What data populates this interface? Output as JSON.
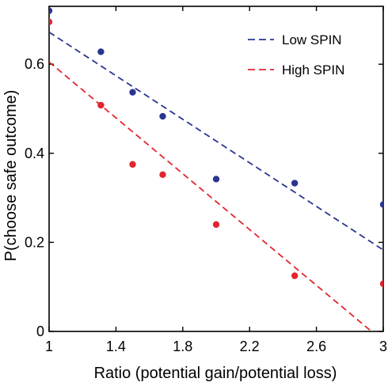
{
  "chart_data": {
    "type": "scatter",
    "xlabel": "Ratio (potential gain/potential loss)",
    "ylabel": "P(choose safe outcome)",
    "xlim": [
      1,
      3
    ],
    "ylim": [
      0,
      0.73
    ],
    "xticks": [
      1,
      1.4,
      1.8,
      2.2,
      2.6,
      3
    ],
    "xtick_labels": [
      "1",
      "1.4",
      "1.8",
      "2.2",
      "2.6",
      "3"
    ],
    "yticks": [
      0,
      0.2,
      0.4,
      0.6
    ],
    "ytick_labels": [
      "0",
      "0.2",
      "0.4",
      "0.6"
    ],
    "grid": false,
    "legend_position": "top-right",
    "series": [
      {
        "name": "Low SPIN",
        "color": "#2a3590",
        "points": [
          {
            "x": 1.0,
            "y": 0.72
          },
          {
            "x": 1.31,
            "y": 0.628
          },
          {
            "x": 1.5,
            "y": 0.537
          },
          {
            "x": 1.68,
            "y": 0.483
          },
          {
            "x": 2.0,
            "y": 0.342
          },
          {
            "x": 2.47,
            "y": 0.333
          },
          {
            "x": 3.0,
            "y": 0.285
          }
        ],
        "fit": {
          "x": [
            1.0,
            3.0
          ],
          "y": [
            0.672,
            0.183
          ]
        }
      },
      {
        "name": "High SPIN",
        "color": "#e0262f",
        "points": [
          {
            "x": 1.0,
            "y": 0.695
          },
          {
            "x": 1.31,
            "y": 0.508
          },
          {
            "x": 1.5,
            "y": 0.375
          },
          {
            "x": 1.68,
            "y": 0.352
          },
          {
            "x": 2.0,
            "y": 0.24
          },
          {
            "x": 2.47,
            "y": 0.125
          },
          {
            "x": 3.0,
            "y": 0.107
          }
        ],
        "fit": {
          "x": [
            1.0,
            2.93
          ],
          "y": [
            0.605,
            0.0
          ]
        }
      }
    ]
  }
}
